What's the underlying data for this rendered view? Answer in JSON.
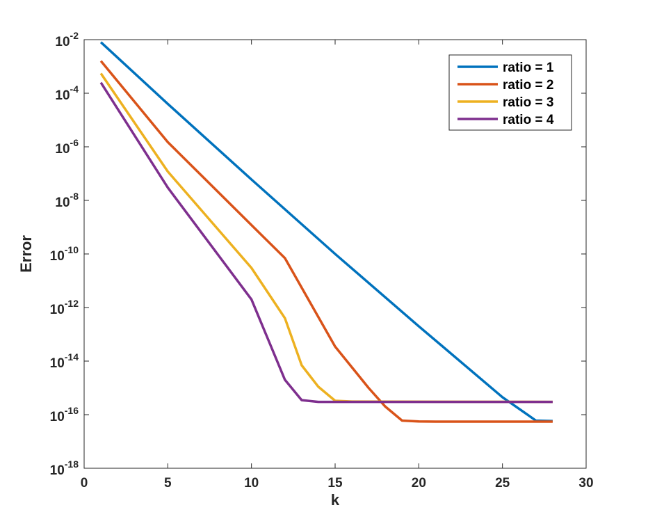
{
  "chart_data": {
    "type": "line",
    "title": "",
    "xlabel": "k",
    "ylabel": "Error",
    "xlim": [
      0,
      30
    ],
    "ylim": [
      1e-18,
      0.01
    ],
    "yscale": "log",
    "xticks": [
      0,
      5,
      10,
      15,
      20,
      25,
      30
    ],
    "yticks": [
      {
        "base": "10",
        "exp": "-18"
      },
      {
        "base": "10",
        "exp": "-16"
      },
      {
        "base": "10",
        "exp": "-14"
      },
      {
        "base": "10",
        "exp": "-12"
      },
      {
        "base": "10",
        "exp": "-10"
      },
      {
        "base": "10",
        "exp": "-8"
      },
      {
        "base": "10",
        "exp": "-6"
      },
      {
        "base": "10",
        "exp": "-4"
      },
      {
        "base": "10",
        "exp": "-2"
      }
    ],
    "grid": false,
    "legend_position": "top-right",
    "series": [
      {
        "name": "ratio = 1",
        "color": "#0072BD",
        "points": [
          [
            1,
            0.008
          ],
          [
            5,
            4e-05
          ],
          [
            10,
            6e-08
          ],
          [
            15,
            1e-10
          ],
          [
            20,
            2e-13
          ],
          [
            25,
            4.5e-16
          ],
          [
            27,
            6e-17
          ],
          [
            28,
            5.8e-17
          ]
        ]
      },
      {
        "name": "ratio = 2",
        "color": "#D95319",
        "points": [
          [
            1,
            0.0016
          ],
          [
            5,
            1.5e-06
          ],
          [
            10,
            1.2e-09
          ],
          [
            12,
            7e-11
          ],
          [
            15,
            3.5e-14
          ],
          [
            17,
            1e-15
          ],
          [
            18,
            2e-16
          ],
          [
            19,
            6e-17
          ],
          [
            20,
            5.6e-17
          ],
          [
            21,
            5.5e-17
          ],
          [
            28,
            5.5e-17
          ]
        ]
      },
      {
        "name": "ratio = 3",
        "color": "#EDB120",
        "points": [
          [
            1,
            0.00055
          ],
          [
            5,
            1.2e-07
          ],
          [
            10,
            3e-11
          ],
          [
            12,
            4e-13
          ],
          [
            13,
            7e-15
          ],
          [
            14,
            1.1e-15
          ],
          [
            15,
            3.3e-16
          ],
          [
            16,
            3.1e-16
          ],
          [
            28,
            3e-16
          ]
        ]
      },
      {
        "name": "ratio = 4",
        "color": "#7E2F8E",
        "points": [
          [
            1,
            0.00025
          ],
          [
            5,
            3e-08
          ],
          [
            10,
            2e-12
          ],
          [
            12,
            2e-15
          ],
          [
            13,
            3.5e-16
          ],
          [
            14,
            3e-16
          ],
          [
            28,
            3e-16
          ]
        ]
      }
    ]
  }
}
